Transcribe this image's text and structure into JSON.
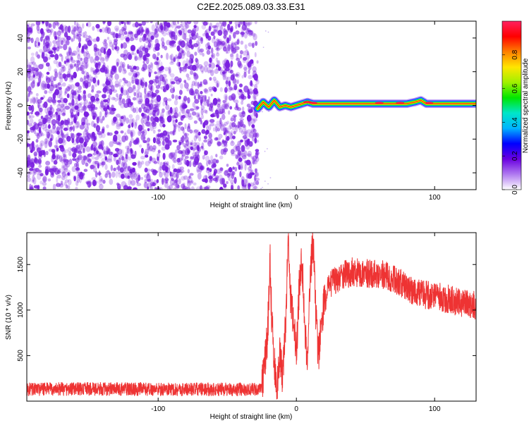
{
  "title": "C2E2.2025.089.03.33.E31",
  "chart_data": [
    {
      "type": "heatmap",
      "name": "spectrogram",
      "xlabel": "Height of straight line (km)",
      "ylabel": "Frequency (Hz)",
      "xlim": [
        -195,
        130
      ],
      "ylim": [
        -50,
        50
      ],
      "x_ticks": [
        -100,
        0,
        100
      ],
      "y_ticks": [
        -40,
        -20,
        0,
        20,
        40
      ],
      "noise_region": {
        "x_range": [
          -195,
          -28
        ],
        "y_range": [
          -50,
          50
        ],
        "color": "#7a1fe0"
      },
      "signal_ridge": {
        "x": [
          -28,
          -24,
          -20,
          -16,
          -12,
          -8,
          -4,
          0,
          4,
          8,
          12,
          20,
          30,
          40,
          50,
          60,
          70,
          80,
          86,
          90,
          94,
          100,
          110,
          120,
          130
        ],
        "center_hz": [
          -2,
          2,
          -1,
          3,
          -1,
          0,
          -1,
          0,
          1,
          2,
          1,
          1,
          1,
          1,
          1,
          1,
          1,
          1,
          2,
          3,
          1,
          1,
          1,
          1,
          1
        ]
      },
      "colorbar": {
        "label": "Normalized spectral amplitude",
        "range": [
          0.0,
          1.0
        ],
        "ticks": [
          "0.0",
          "0.2",
          "0.4",
          "0.6",
          "0.8"
        ],
        "colors": [
          "#ffffff",
          "#b07af0",
          "#6a00e0",
          "#0000ff",
          "#00b4ff",
          "#00e6c8",
          "#00e600",
          "#a0f000",
          "#ffe600",
          "#ff8000",
          "#ff0000",
          "#ff2060"
        ]
      }
    },
    {
      "type": "line",
      "name": "snr",
      "xlabel": "Height of straight line (km)",
      "ylabel": "SNR (10 * v/v)",
      "xlim": [
        -195,
        130
      ],
      "ylim": [
        0,
        1850
      ],
      "x_ticks": [
        -100,
        0,
        100
      ],
      "y_ticks": [
        500,
        1000,
        1500
      ],
      "series": [
        {
          "color": "#ee3333",
          "x": [
            -195,
            -150,
            -100,
            -50,
            -25,
            -21,
            -20,
            -19,
            -18,
            -16,
            -14,
            -12,
            -10,
            -8,
            -6,
            -4,
            -2,
            0,
            2,
            4,
            6,
            8,
            10,
            12,
            14,
            16,
            18,
            20,
            25,
            30,
            40,
            50,
            60,
            70,
            80,
            90,
            100,
            110,
            120,
            130
          ],
          "y": [
            130,
            135,
            130,
            130,
            130,
            700,
            1050,
            1600,
            1000,
            400,
            120,
            500,
            250,
            800,
            1700,
            1100,
            900,
            500,
            1250,
            1550,
            900,
            400,
            1350,
            1800,
            1000,
            500,
            850,
            1100,
            1300,
            1350,
            1420,
            1400,
            1400,
            1350,
            1250,
            1180,
            1150,
            1120,
            1080,
            1050
          ]
        }
      ]
    }
  ]
}
